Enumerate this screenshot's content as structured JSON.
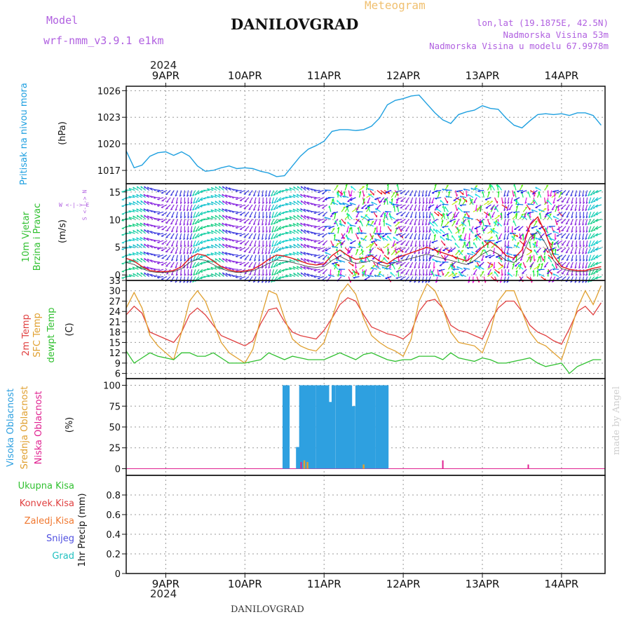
{
  "header": {
    "meteogram": "Meteogram",
    "model_label": "Model",
    "model_name": "wrf-nmm_v3.9.1 e1km",
    "station": "DANILOVGRAD",
    "lonlat": "lon,lat (19.1875E, 42.5N)",
    "elev": "Nadmorska Visina 53m",
    "elev_model": "Nadmorska Visina u modelu 67.9978m"
  },
  "footer": {
    "station": "DANILOVGRAD",
    "watermark": "made by Angel"
  },
  "time_axis": {
    "year": "2024",
    "labels": [
      "9APR",
      "10APR",
      "11APR",
      "12APR",
      "13APR",
      "14APR"
    ]
  },
  "panels": {
    "pressure": {
      "ylabel_a": "Pritisak na nivou mora",
      "ylabel_b": "(hPa)"
    },
    "wind": {
      "ylabel_a": "10m Vjetar",
      "ylabel_b": "Brzina i Pravac",
      "ylabel_c": "(m/s)",
      "compass": "W <-|-> E",
      "compass_v": "S <-|-> N"
    },
    "temp": {
      "ylabel_a": "2m Temp",
      "ylabel_b": "SFC Temp",
      "ylabel_c": "dewpt Temp",
      "ylabel_d": "(C)"
    },
    "cloud": {
      "ylabel_a": "Visoka Oblacnost",
      "ylabel_b": "Srednja Oblacnost",
      "ylabel_c": "Niska Oblacnost",
      "ylabel_d": "(%)"
    },
    "precip": {
      "ylabel": "1hr Precip (mm)",
      "legend": [
        "Ukupna Kisa",
        "Konvek.Kisa",
        "Zaledj.Kisa",
        "Snijeg",
        "Grad"
      ]
    }
  },
  "colors": {
    "pressure": "#1fa0e0",
    "t2m": "#e04040",
    "sfc": "#e0a030",
    "dewpt": "#30c030",
    "high_cloud": "#2ea0e0",
    "mid_cloud": "#e0a030",
    "low_cloud": "#e02090",
    "speed": "#e01818",
    "purple": "#9040d0",
    "legend": [
      "#30c030",
      "#e04040",
      "#f07830",
      "#5050e0",
      "#20c0c0"
    ]
  },
  "chart_data": [
    {
      "type": "line",
      "title": "Pritisak na nivou mora (hPa)",
      "x": [
        8.5,
        8.6,
        8.7,
        8.8,
        8.9,
        9.0,
        9.1,
        9.2,
        9.3,
        9.4,
        9.5,
        9.6,
        9.7,
        9.8,
        9.9,
        10.0,
        10.1,
        10.2,
        10.3,
        10.4,
        10.5,
        10.6,
        10.7,
        10.8,
        10.9,
        11.0,
        11.1,
        11.2,
        11.3,
        11.4,
        11.5,
        11.6,
        11.7,
        11.8,
        11.9,
        12.0,
        12.1,
        12.2,
        12.3,
        12.4,
        12.5,
        12.6,
        12.7,
        12.8,
        12.9,
        13.0,
        13.1,
        13.2,
        13.3,
        13.4,
        13.5,
        13.6,
        13.7,
        13.8,
        13.9,
        14.0,
        14.1,
        14.2,
        14.3,
        14.4,
        14.5
      ],
      "values": [
        1019.2,
        1017.3,
        1017.6,
        1018.6,
        1019.0,
        1019.1,
        1018.7,
        1019.1,
        1018.6,
        1017.5,
        1016.9,
        1017.0,
        1017.3,
        1017.5,
        1017.2,
        1017.3,
        1017.2,
        1016.9,
        1016.7,
        1016.3,
        1016.4,
        1017.5,
        1018.6,
        1019.4,
        1019.8,
        1020.3,
        1021.4,
        1021.6,
        1021.6,
        1021.5,
        1021.6,
        1022.0,
        1022.9,
        1024.4,
        1024.9,
        1025.1,
        1025.4,
        1025.5,
        1024.5,
        1023.5,
        1022.7,
        1022.3,
        1023.3,
        1023.6,
        1023.8,
        1024.3,
        1024.0,
        1023.9,
        1022.9,
        1022.1,
        1021.8,
        1022.6,
        1023.3,
        1023.4,
        1023.3,
        1023.4,
        1023.2,
        1023.5,
        1023.5,
        1023.2,
        1022.1
      ],
      "ylim": [
        1015.5,
        1026.5
      ],
      "yticks": [
        1017,
        1020,
        1023,
        1026
      ]
    },
    {
      "type": "line",
      "title": "10m Vjetar Brzina i Pravac (m/s)",
      "x": [
        8.5,
        8.6,
        8.7,
        8.8,
        8.9,
        9.0,
        9.1,
        9.2,
        9.3,
        9.4,
        9.5,
        9.6,
        9.7,
        9.8,
        9.9,
        10.0,
        10.1,
        10.2,
        10.3,
        10.4,
        10.5,
        10.6,
        10.7,
        10.8,
        10.9,
        11.0,
        11.1,
        11.2,
        11.3,
        11.4,
        11.5,
        11.6,
        11.7,
        11.8,
        11.9,
        12.0,
        12.1,
        12.2,
        12.3,
        12.4,
        12.5,
        12.6,
        12.7,
        12.8,
        12.9,
        13.0,
        13.1,
        13.2,
        13.3,
        13.4,
        13.5,
        13.6,
        13.7,
        13.8,
        13.9,
        14.0,
        14.1,
        14.2,
        14.3,
        14.4,
        14.5
      ],
      "values": [
        3.0,
        2.5,
        1.5,
        0.8,
        0.6,
        0.6,
        0.8,
        1.5,
        3.0,
        3.8,
        3.5,
        2.5,
        1.5,
        0.9,
        0.6,
        0.7,
        1.0,
        1.8,
        2.8,
        3.6,
        3.4,
        3.0,
        2.5,
        2.0,
        1.8,
        2.0,
        3.5,
        4.5,
        3.5,
        2.8,
        3.0,
        3.5,
        2.5,
        2.0,
        3.0,
        3.5,
        4.0,
        4.5,
        5.0,
        4.5,
        4.0,
        3.5,
        3.0,
        2.5,
        3.5,
        5.0,
        6.0,
        5.0,
        3.5,
        3.0,
        4.5,
        9.0,
        10.5,
        7.5,
        3.5,
        1.5,
        1.0,
        0.8,
        0.8,
        1.2,
        1.5
      ],
      "ylim": [
        -1,
        16.5
      ],
      "yticks": [
        0,
        5,
        10,
        15
      ]
    },
    {
      "type": "line",
      "title": "2m Temp / SFC Temp / dewpt Temp (C)",
      "x": [
        8.5,
        8.6,
        8.7,
        8.8,
        8.9,
        9.0,
        9.1,
        9.2,
        9.3,
        9.4,
        9.5,
        9.6,
        9.7,
        9.8,
        9.9,
        10.0,
        10.1,
        10.2,
        10.3,
        10.4,
        10.5,
        10.6,
        10.7,
        10.8,
        10.9,
        11.0,
        11.1,
        11.2,
        11.3,
        11.4,
        11.5,
        11.6,
        11.7,
        11.8,
        11.9,
        12.0,
        12.1,
        12.2,
        12.3,
        12.4,
        12.5,
        12.6,
        12.7,
        12.8,
        12.9,
        13.0,
        13.1,
        13.2,
        13.3,
        13.4,
        13.5,
        13.6,
        13.7,
        13.8,
        13.9,
        14.0,
        14.1,
        14.2,
        14.3,
        14.4,
        14.5
      ],
      "series": [
        {
          "name": "2m Temp",
          "values": [
            23.0,
            25.5,
            23.5,
            18.0,
            17.0,
            16.0,
            15.0,
            18.0,
            23.0,
            25.0,
            23.0,
            20.0,
            17.0,
            16.0,
            15.0,
            14.0,
            15.5,
            20.5,
            24.5,
            25.0,
            21.0,
            18.0,
            17.0,
            16.5,
            16.0,
            18.5,
            22.0,
            26.0,
            28.0,
            27.0,
            23.0,
            19.5,
            18.5,
            17.5,
            17.0,
            16.0,
            18.0,
            24.0,
            27.0,
            27.5,
            25.0,
            20.0,
            18.5,
            18.0,
            17.0,
            16.0,
            21.0,
            25.0,
            27.0,
            27.0,
            24.0,
            20.0,
            18.0,
            17.0,
            15.5,
            14.5,
            19.0,
            24.0,
            25.5,
            23.0,
            26.5
          ]
        },
        {
          "name": "SFC Temp",
          "values": [
            25.0,
            29.5,
            25.0,
            17.0,
            14.0,
            12.0,
            10.0,
            18.0,
            27.0,
            30.0,
            27.0,
            21.0,
            15.0,
            12.0,
            10.5,
            9.0,
            13.0,
            22.0,
            30.0,
            29.0,
            22.0,
            16.0,
            14.0,
            13.0,
            12.5,
            15.0,
            22.0,
            29.0,
            32.0,
            29.0,
            22.0,
            17.0,
            15.0,
            13.5,
            12.5,
            11.0,
            16.0,
            27.0,
            32.0,
            30.0,
            25.0,
            18.0,
            15.0,
            14.5,
            14.0,
            12.0,
            18.0,
            27.0,
            30.0,
            30.0,
            24.0,
            18.0,
            15.0,
            14.0,
            12.0,
            10.0,
            17.0,
            25.0,
            30.0,
            26.0,
            31.5
          ]
        },
        {
          "name": "dewpt Temp",
          "values": [
            12.5,
            9.0,
            10.5,
            12.0,
            11.0,
            10.5,
            10.0,
            12.0,
            12.0,
            11.0,
            11.0,
            12.0,
            10.5,
            9.0,
            9.0,
            9.0,
            9.5,
            10.0,
            12.0,
            11.0,
            10.0,
            11.0,
            10.5,
            10.0,
            10.0,
            10.0,
            11.0,
            12.0,
            11.0,
            10.0,
            11.5,
            12.0,
            11.0,
            10.0,
            9.5,
            10.0,
            10.0,
            11.0,
            11.0,
            11.0,
            10.0,
            12.0,
            10.5,
            10.0,
            9.5,
            10.5,
            10.0,
            9.0,
            9.0,
            9.5,
            10.0,
            10.5,
            9.0,
            8.0,
            8.5,
            9.0,
            6.0,
            8.0,
            9.0,
            10.0,
            10.0
          ]
        }
      ],
      "ylim": [
        4.5,
        33
      ],
      "yticks": [
        6,
        9,
        12,
        15,
        18,
        21,
        24,
        27,
        30,
        33
      ]
    },
    {
      "type": "bar",
      "title": "Oblacnost (%)",
      "series": [
        {
          "name": "Visoka Oblacnost",
          "x": [
            10.5,
            10.54,
            10.67,
            10.71,
            10.75,
            10.79,
            10.83,
            10.87,
            10.92,
            10.96,
            11.0,
            11.04,
            11.08,
            11.12,
            11.17,
            11.21,
            11.25,
            11.29,
            11.33,
            11.37,
            11.42,
            11.46,
            11.5,
            11.54,
            11.58,
            11.62,
            11.67,
            11.71,
            11.75,
            11.79
          ],
          "values": [
            100,
            100,
            26,
            100,
            100,
            100,
            100,
            100,
            100,
            100,
            100,
            100,
            80,
            100,
            100,
            100,
            100,
            100,
            100,
            75,
            100,
            100,
            100,
            100,
            100,
            100,
            100,
            100,
            100,
            100
          ]
        },
        {
          "name": "Srednja Oblacnost",
          "x": [
            10.75,
            10.79,
            11.5
          ],
          "values": [
            10,
            8,
            5
          ]
        },
        {
          "name": "Niska Oblacnost",
          "x": [
            10.71,
            12.5,
            13.58
          ],
          "values": [
            8,
            10,
            5
          ]
        }
      ],
      "ylim": [
        -8,
        108
      ],
      "yticks": [
        0,
        25,
        50,
        75,
        100
      ]
    },
    {
      "type": "bar",
      "title": "1hr Precip (mm)",
      "series": [],
      "ylim": [
        0,
        1.0
      ],
      "yticks": [
        0,
        0.2,
        0.4,
        0.6,
        0.8
      ]
    }
  ]
}
